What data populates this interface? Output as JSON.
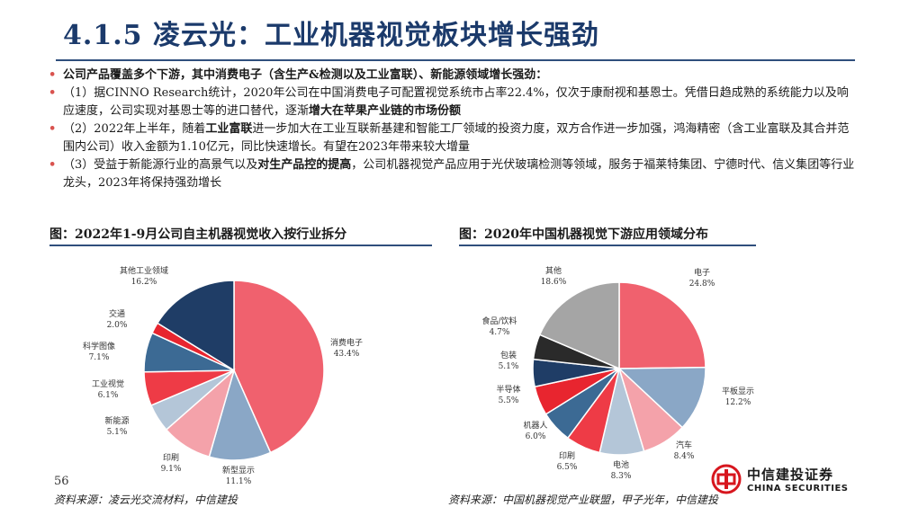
{
  "slide": {
    "title": "4.1.5 凌云光：工业机器视觉板块增长强劲",
    "page_number": "56"
  },
  "bullets": [
    {
      "segments": [
        {
          "text": "公司产品覆盖多个下游，其中消费电子（含生产&检测以及工业富联）、新能源领域增长强劲：",
          "bold": true
        }
      ]
    },
    {
      "segments": [
        {
          "text": "（1）据CINNO Research统计，2020年公司在中国消费电子可配置视觉系统市占率22.4%，仅次于康耐视和基恩士。凭借日趋成熟的系统能力以及响应速度，公司实现对基恩士等的进口替代，逐渐",
          "bold": false
        },
        {
          "text": "增大在苹果产业链的市场份额",
          "bold": true
        }
      ]
    },
    {
      "segments": [
        {
          "text": "（2）2022年上半年，随着",
          "bold": false
        },
        {
          "text": "工业富联",
          "bold": true
        },
        {
          "text": "进一步加大在工业互联新基建和智能工厂领域的投资力度，双方合作进一步加强，鸿海精密（含工业富联及其合并范围内公司）收入金额为1.10亿元，同比快速增长。有望在2023年带来较大增量",
          "bold": false
        }
      ]
    },
    {
      "segments": [
        {
          "text": "（3）受益于新能源行业的高景气以及",
          "bold": false
        },
        {
          "text": "对生产品控的提高",
          "bold": true
        },
        {
          "text": "，公司机器视觉产品应用于光伏玻璃检测等领域，服务于福莱特集团、宁德时代、信义集团等行业龙头，2023年将保持强劲增长",
          "bold": false
        }
      ]
    }
  ],
  "chart_data": [
    {
      "type": "pie",
      "title": "图：2022年1-9月公司自主机器视觉收入按行业拆分",
      "source": "资料来源：凌云光交流材料，中信建投",
      "slices": [
        {
          "label": "消费电子",
          "value": 43.4,
          "pct": "43.4%",
          "color": "#f0616e"
        },
        {
          "label": "新型显示",
          "value": 11.1,
          "pct": "11.1%",
          "color": "#8aa7c6"
        },
        {
          "label": "印刷",
          "value": 9.1,
          "pct": "9.1%",
          "color": "#f4a2aa"
        },
        {
          "label": "新能源",
          "value": 5.1,
          "pct": "5.1%",
          "color": "#b4c6d8"
        },
        {
          "label": "工业视觉",
          "value": 6.1,
          "pct": "6.1%",
          "color": "#ee3b46"
        },
        {
          "label": "科学图像",
          "value": 7.1,
          "pct": "7.1%",
          "color": "#3c6a94"
        },
        {
          "label": "交通",
          "value": 2.0,
          "pct": "2.0%",
          "color": "#e8252f"
        },
        {
          "label": "其他工业领域",
          "value": 16.2,
          "pct": "16.2%",
          "color": "#1f3d66"
        }
      ]
    },
    {
      "type": "pie",
      "title": "图：2020年中国机器视觉下游应用领域分布",
      "source": "资料来源：中国机器视觉产业联盟，甲子光年，中信建投",
      "slices": [
        {
          "label": "电子",
          "value": 24.8,
          "pct": "24.8%",
          "color": "#f0616e"
        },
        {
          "label": "平板显示",
          "value": 12.2,
          "pct": "12.2%",
          "color": "#8aa7c6"
        },
        {
          "label": "汽车",
          "value": 8.4,
          "pct": "8.4%",
          "color": "#f4a2aa"
        },
        {
          "label": "电池",
          "value": 8.3,
          "pct": "8.3%",
          "color": "#b4c6d8"
        },
        {
          "label": "印刷",
          "value": 6.5,
          "pct": "6.5%",
          "color": "#ee3b46"
        },
        {
          "label": "机器人",
          "value": 6.0,
          "pct": "6.0%",
          "color": "#3c6a94"
        },
        {
          "label": "半导体",
          "value": 5.5,
          "pct": "5.5%",
          "color": "#e8252f"
        },
        {
          "label": "包装",
          "value": 5.1,
          "pct": "5.1%",
          "color": "#1f3d66"
        },
        {
          "label": "食品/饮料",
          "value": 4.7,
          "pct": "4.7%",
          "color": "#2a2a2a"
        },
        {
          "label": "其他",
          "value": 18.6,
          "pct": "18.6%",
          "color": "#a5a5a5"
        }
      ]
    }
  ],
  "logo": {
    "name_cn": "中信建投证券",
    "name_en": "CHINA SECURITIES",
    "mark_color": "#d7161e"
  },
  "colors": {
    "title": "#1b3a6b",
    "rule": "#2f4e7c",
    "bullet": "#d9534f"
  }
}
